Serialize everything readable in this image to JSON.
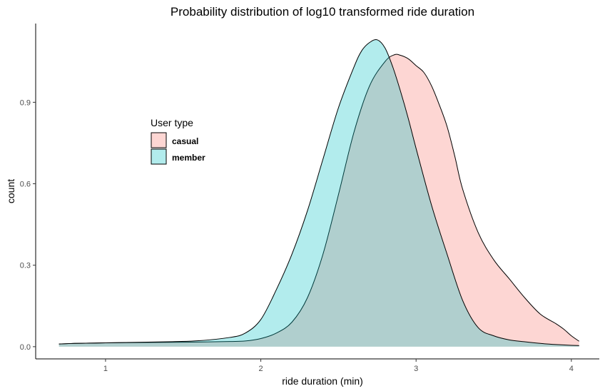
{
  "chart_data": {
    "type": "area",
    "title": "Probability distribution of log10 transformed ride duration",
    "xlabel": "ride duration (min)",
    "ylabel": "count",
    "xlim": [
      0.55,
      4.18
    ],
    "ylim": [
      -0.045,
      1.19
    ],
    "x_ticks": [
      1,
      2,
      3,
      4
    ],
    "y_ticks": [
      0.0,
      0.3,
      0.6,
      0.9
    ],
    "x_tick_labels": [
      "1",
      "2",
      "3",
      "4"
    ],
    "y_tick_labels": [
      "0.0",
      "0.3",
      "0.6",
      "0.9"
    ],
    "grid": false,
    "legend": {
      "title": "User type",
      "placement": "center-left",
      "entries": [
        "casual",
        "member"
      ]
    },
    "series": [
      {
        "name": "casual",
        "color": "#F8766D",
        "x": [
          0.7,
          0.8,
          0.9,
          1.0,
          1.2,
          1.4,
          1.6,
          1.8,
          1.9,
          2.0,
          2.1,
          2.2,
          2.3,
          2.4,
          2.5,
          2.6,
          2.7,
          2.8,
          2.86,
          2.9,
          2.95,
          3.0,
          3.05,
          3.1,
          3.15,
          3.2,
          3.25,
          3.3,
          3.4,
          3.5,
          3.6,
          3.7,
          3.8,
          3.9,
          3.95,
          4.0,
          4.05
        ],
        "values": [
          0.01,
          0.012,
          0.013,
          0.014,
          0.015,
          0.016,
          0.017,
          0.019,
          0.021,
          0.03,
          0.05,
          0.09,
          0.18,
          0.34,
          0.56,
          0.79,
          0.96,
          1.05,
          1.075,
          1.073,
          1.06,
          1.035,
          1.01,
          0.96,
          0.89,
          0.81,
          0.7,
          0.58,
          0.42,
          0.32,
          0.25,
          0.18,
          0.12,
          0.085,
          0.065,
          0.04,
          0.02
        ]
      },
      {
        "name": "member",
        "color": "#00BFC4",
        "x": [
          0.7,
          0.8,
          0.9,
          1.0,
          1.2,
          1.4,
          1.6,
          1.8,
          1.9,
          2.0,
          2.1,
          2.2,
          2.3,
          2.4,
          2.5,
          2.6,
          2.65,
          2.7,
          2.75,
          2.8,
          2.85,
          2.9,
          2.95,
          3.0,
          3.1,
          3.2,
          3.3,
          3.4,
          3.5,
          3.6,
          3.7,
          3.8,
          3.9,
          4.0,
          4.05
        ],
        "values": [
          0.01,
          0.012,
          0.013,
          0.014,
          0.016,
          0.018,
          0.022,
          0.034,
          0.05,
          0.1,
          0.21,
          0.34,
          0.5,
          0.69,
          0.88,
          1.03,
          1.09,
          1.12,
          1.13,
          1.1,
          1.03,
          0.94,
          0.84,
          0.73,
          0.52,
          0.34,
          0.17,
          0.07,
          0.04,
          0.025,
          0.018,
          0.012,
          0.008,
          0.005,
          0.004
        ]
      }
    ]
  }
}
